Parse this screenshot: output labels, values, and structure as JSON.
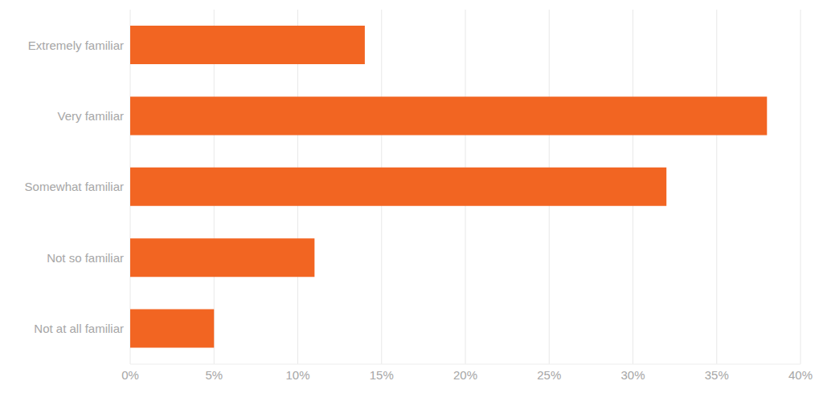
{
  "chart_data": {
    "type": "bar",
    "orientation": "horizontal",
    "categories": [
      "Extremely familiar",
      "Very familiar",
      "Somewhat familiar",
      "Not so familiar",
      "Not at all familiar"
    ],
    "values": [
      14,
      38,
      32,
      11,
      5
    ],
    "color": "#f26522",
    "xlim": [
      0,
      40
    ],
    "xticks": [
      {
        "value": 0,
        "label": "0%"
      },
      {
        "value": 5,
        "label": "5%"
      },
      {
        "value": 10,
        "label": "10%"
      },
      {
        "value": 15,
        "label": "15%"
      },
      {
        "value": 20,
        "label": "20%"
      },
      {
        "value": 25,
        "label": "25%"
      },
      {
        "value": 30,
        "label": "30%"
      },
      {
        "value": 35,
        "label": "35%"
      },
      {
        "value": 40,
        "label": "40%"
      }
    ],
    "grid": true
  }
}
